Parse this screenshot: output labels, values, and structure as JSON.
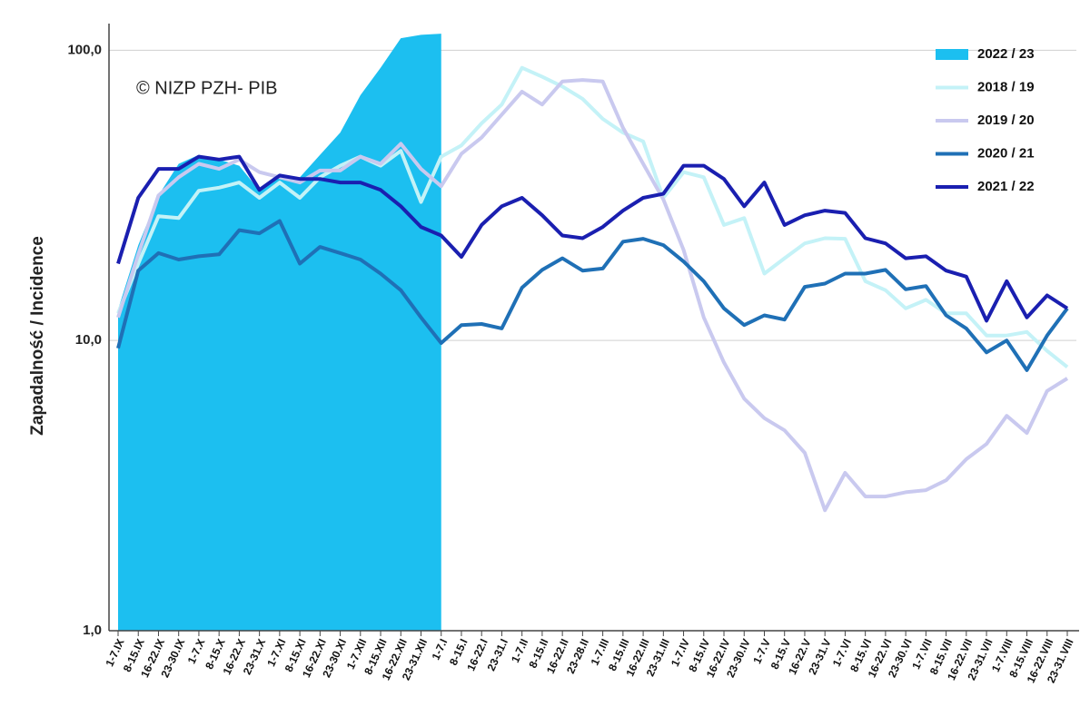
{
  "chart_data": {
    "type": "line",
    "annotation": "© NIZP PZH- PIB",
    "y_label": "Zapadalność  /  Incidence",
    "log_scale": true,
    "grid": true,
    "legend": "top-right",
    "ylim": [
      1,
      120
    ],
    "yticks": [
      {
        "value": 1,
        "label": "1,0"
      },
      {
        "value": 10,
        "label": "10,0"
      },
      {
        "value": 100,
        "label": "100,0"
      }
    ],
    "categories": [
      "1-7.IX",
      "8-15.IX",
      "16-22.IX",
      "23-30.IX",
      "1-7.X",
      "8-15.X",
      "16-22.X",
      "23-31.X",
      "1-7.XI",
      "8-15.XI",
      "16-22.XI",
      "23-30.XI",
      "1-7.XII",
      "8-15.XII",
      "16-22.XII",
      "23-31.XII",
      "1-7.I",
      "8-15.I",
      "16-22.I",
      "23-31.I",
      "1-7.II",
      "8-15.II",
      "16-22.II",
      "23-28.II",
      "1-7.III",
      "8-15.III",
      "16-22.III",
      "23-31.III",
      "1-7.IV",
      "8-15.IV",
      "16-22.IV",
      "23-30.IV",
      "1-7.V",
      "8-15.V",
      "16-22.V",
      "23-31.V",
      "1-7.VI",
      "8-15.VI",
      "16-22.VI",
      "23-30.VI",
      "1-7.VII",
      "8-15.VII",
      "16-22.VII",
      "23-31.VII",
      "1-7.VIII",
      "8-15.VIII",
      "16-22.VIII",
      "23-31.VIII"
    ],
    "series": [
      {
        "name": "2022 / 23",
        "style": "area",
        "color": "#1cbff0",
        "values": [
          12.8,
          21.3,
          31.6,
          40.6,
          43.6,
          42,
          40,
          32.8,
          37.3,
          36.5,
          43.6,
          52,
          70,
          87,
          110,
          113,
          114,
          null,
          null,
          null,
          null,
          null,
          null,
          null,
          null,
          null,
          null,
          null,
          null,
          null,
          null,
          null,
          null,
          null,
          null,
          null,
          null,
          null,
          null,
          null,
          null,
          null,
          null,
          null,
          null,
          null,
          null,
          null
        ]
      },
      {
        "name": "2018 / 19",
        "style": "line",
        "color": "#c4f2f7",
        "values": [
          12.4,
          18.4,
          26.8,
          26.4,
          32.8,
          33.6,
          35,
          31,
          35,
          31,
          36.5,
          40,
          43,
          40,
          45,
          30,
          43,
          47,
          56,
          65,
          87,
          81,
          75,
          68,
          58,
          52,
          48.5,
          31,
          38,
          36.5,
          25,
          26.4,
          17,
          19.2,
          21.6,
          22.5,
          22.4,
          16,
          14.9,
          12.9,
          13.8,
          12.4,
          12.4,
          10.4,
          10.4,
          10.7,
          9.2,
          8.1
        ]
      },
      {
        "name": "2019 / 20",
        "style": "line",
        "color": "#c9c9ef",
        "values": [
          12,
          19.8,
          31.6,
          36.5,
          40.6,
          39,
          42,
          38,
          36.5,
          35,
          38.5,
          38.5,
          43,
          40.6,
          47.6,
          39,
          34,
          44,
          50,
          60,
          72,
          65,
          78,
          79,
          78,
          54,
          40.6,
          30.6,
          20.5,
          12,
          8.4,
          6.3,
          5.4,
          4.9,
          4.1,
          2.6,
          3.5,
          2.9,
          2.9,
          3,
          3.05,
          3.3,
          3.9,
          4.4,
          5.5,
          4.8,
          6.7,
          7.4
        ]
      },
      {
        "name": "2020 / 21",
        "style": "line",
        "color": "#1f70b6",
        "values": [
          9.4,
          17.4,
          20,
          19,
          19.5,
          19.8,
          24,
          23.4,
          25.8,
          18.4,
          21,
          20,
          19,
          17,
          14.9,
          12,
          9.8,
          11.3,
          11.4,
          11,
          15.2,
          17.5,
          19.2,
          17.4,
          17.7,
          21.9,
          22.4,
          21.3,
          18.7,
          16,
          12.9,
          11.3,
          12.2,
          11.8,
          15.3,
          15.7,
          17,
          17,
          17.5,
          15,
          15.4,
          12.2,
          11,
          9.1,
          10,
          7.9,
          10.4,
          12.9
        ]
      },
      {
        "name": "2021 / 22",
        "style": "line",
        "color": "#1a1fb0",
        "values": [
          18.4,
          31,
          39,
          39,
          43,
          42,
          43,
          33,
          37,
          36,
          36,
          35,
          35,
          33,
          29,
          24.6,
          23,
          19.4,
          25,
          29,
          31,
          27,
          23,
          22.5,
          24.6,
          28,
          31,
          32,
          40,
          40,
          36,
          29,
          35,
          25,
          27,
          28,
          27.5,
          22.5,
          21.6,
          19.2,
          19.5,
          17.4,
          16.6,
          11.7,
          16,
          12,
          14.3,
          12.9
        ]
      }
    ]
  }
}
